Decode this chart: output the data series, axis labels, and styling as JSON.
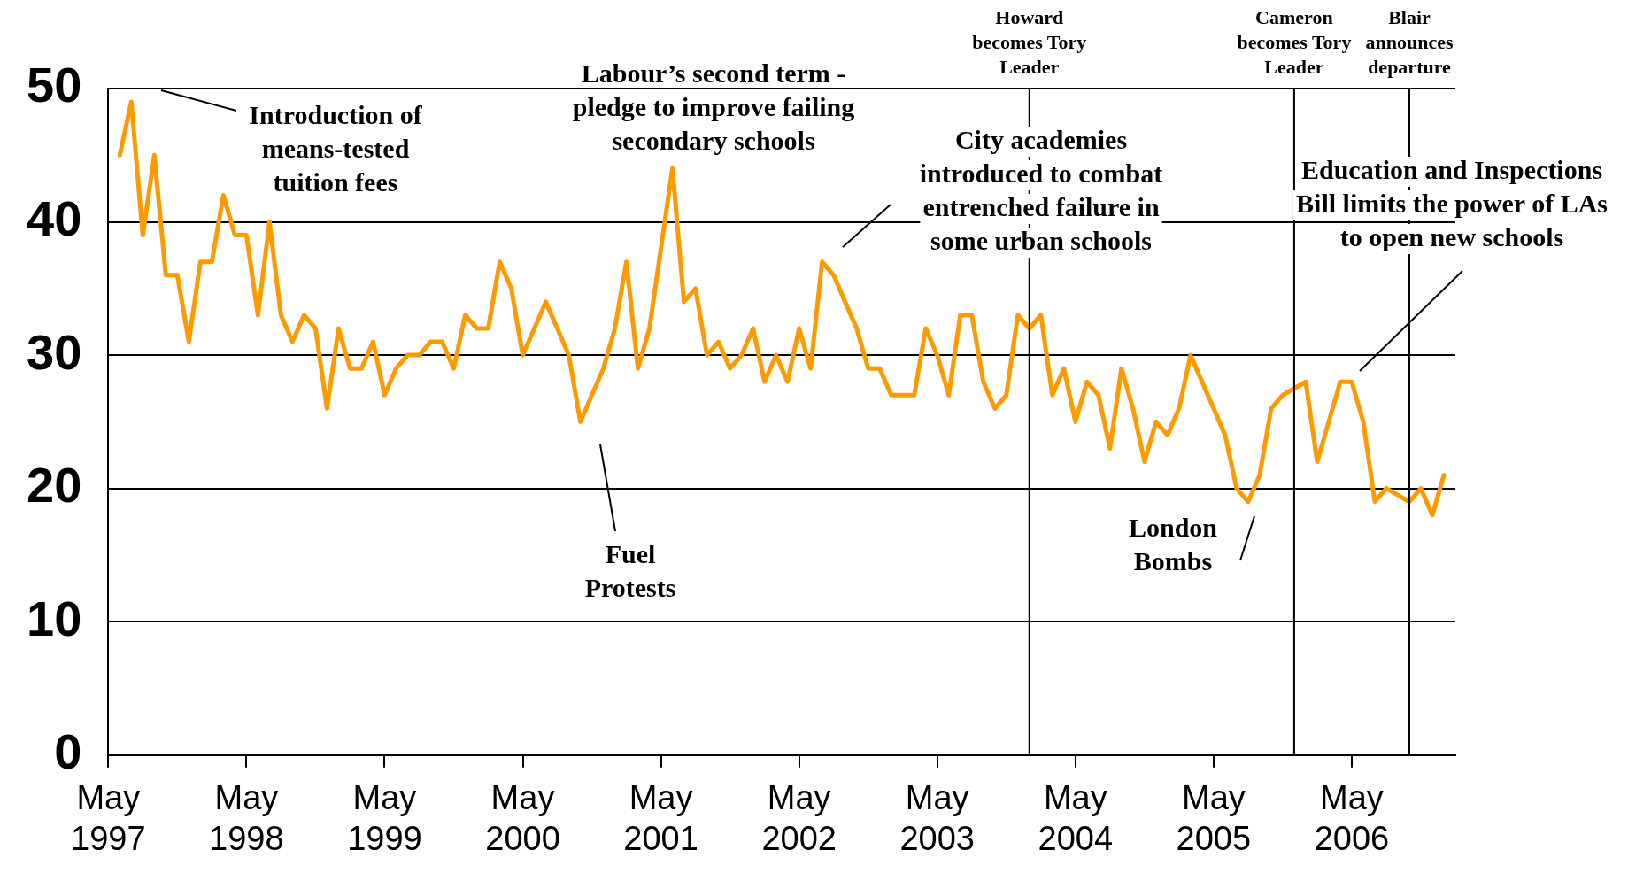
{
  "chart_data": {
    "type": "line",
    "x": [
      "1997-06",
      "1997-07",
      "1997-08",
      "1997-09",
      "1997-10",
      "1997-11",
      "1997-12",
      "1998-01",
      "1998-02",
      "1998-03",
      "1998-04",
      "1998-05",
      "1998-06",
      "1998-07",
      "1998-08",
      "1998-09",
      "1998-10",
      "1998-11",
      "1998-12",
      "1999-01",
      "1999-02",
      "1999-03",
      "1999-04",
      "1999-05",
      "1999-06",
      "1999-07",
      "1999-08",
      "1999-09",
      "1999-10",
      "1999-11",
      "1999-12",
      "2000-01",
      "2000-02",
      "2000-03",
      "2000-04",
      "2000-05",
      "2000-06",
      "2000-07",
      "2000-08",
      "2000-09",
      "2000-10",
      "2000-11",
      "2000-12",
      "2001-01",
      "2001-02",
      "2001-03",
      "2001-04",
      "2001-05",
      "2001-06",
      "2001-07",
      "2001-08",
      "2001-09",
      "2001-10",
      "2001-11",
      "2001-12",
      "2002-01",
      "2002-02",
      "2002-03",
      "2002-04",
      "2002-05",
      "2002-06",
      "2002-07",
      "2002-08",
      "2002-09",
      "2002-10",
      "2002-11",
      "2002-12",
      "2003-01",
      "2003-02",
      "2003-03",
      "2003-04",
      "2003-05",
      "2003-06",
      "2003-07",
      "2003-08",
      "2003-09",
      "2003-10",
      "2003-11",
      "2003-12",
      "2004-01",
      "2004-02",
      "2004-03",
      "2004-04",
      "2004-05",
      "2004-06",
      "2004-07",
      "2004-08",
      "2004-09",
      "2004-10",
      "2004-11",
      "2004-12",
      "2005-01",
      "2005-02",
      "2005-03",
      "2005-04",
      "2005-05",
      "2005-06",
      "2005-07",
      "2005-08",
      "2005-09",
      "2005-10",
      "2005-11",
      "2005-12",
      "2006-01",
      "2006-02",
      "2006-03",
      "2006-04",
      "2006-05",
      "2006-06",
      "2006-07",
      "2006-08",
      "2006-09",
      "2006-10",
      "2006-11",
      "2006-12",
      "2007-01"
    ],
    "series": [
      {
        "color": "#ff9900",
        "values": [
          45,
          49,
          39,
          45,
          36,
          36,
          31,
          37,
          37,
          42,
          39,
          39,
          33,
          40,
          33,
          31,
          33,
          32,
          26,
          32,
          29,
          29,
          31,
          27,
          29,
          30,
          30,
          31,
          31,
          29,
          33,
          32,
          32,
          37,
          35,
          30,
          32,
          34,
          32,
          30,
          25,
          27,
          29,
          32,
          37,
          29,
          32,
          38,
          44,
          34,
          35,
          30,
          31,
          29,
          30,
          32,
          28,
          30,
          28,
          32,
          29,
          37,
          36,
          34,
          32,
          29,
          29,
          27,
          27,
          27,
          32,
          30,
          27,
          33,
          33,
          28,
          26,
          27,
          33,
          32,
          33,
          27,
          29,
          25,
          28,
          27,
          23,
          29,
          26,
          22,
          25,
          24,
          26,
          30,
          28,
          26,
          24,
          20,
          19,
          21,
          26,
          27,
          27.5,
          28,
          22,
          25,
          28,
          28,
          25,
          19,
          20,
          19.5,
          19,
          20,
          18,
          21
        ]
      }
    ],
    "xlim": [
      "1997-05",
      "2007-02"
    ],
    "xticks": [
      {
        "value": "1997-05",
        "label": "May 1997"
      },
      {
        "value": "1998-05",
        "label": "May 1998"
      },
      {
        "value": "1999-05",
        "label": "May 1999"
      },
      {
        "value": "2000-05",
        "label": "May 2000"
      },
      {
        "value": "2001-05",
        "label": "May 2001"
      },
      {
        "value": "2002-05",
        "label": "May 2002"
      },
      {
        "value": "2003-05",
        "label": "May 2003"
      },
      {
        "value": "2004-05",
        "label": "May 2004"
      },
      {
        "value": "2005-05",
        "label": "May 2005"
      },
      {
        "value": "2006-05",
        "label": "May 2006"
      }
    ],
    "ylim": [
      0,
      50
    ],
    "yticks": [
      0,
      10,
      20,
      30,
      40,
      50
    ],
    "grid": "y",
    "legend": false,
    "marker": "none",
    "line_style": "solid",
    "ref_lines": [
      {
        "axis": "x",
        "value": "2004-01",
        "label": "Howard becomes Tory Leader"
      },
      {
        "axis": "x",
        "value": "2005-12",
        "label": "Cameron becomes Tory Leader"
      },
      {
        "axis": "x",
        "value": "2006-10",
        "label": "Blair announces departure"
      }
    ],
    "annotations": [
      "Introduction of means-tested tuition fees",
      "Labour’s second term - pledge to improve failing secondary schools",
      "City academies introduced to combat entrenched failure in some urban schools",
      "Fuel Protests",
      "London Bombs",
      "Education and Inspections Bill limits the power of LAs to open new schools"
    ]
  }
}
